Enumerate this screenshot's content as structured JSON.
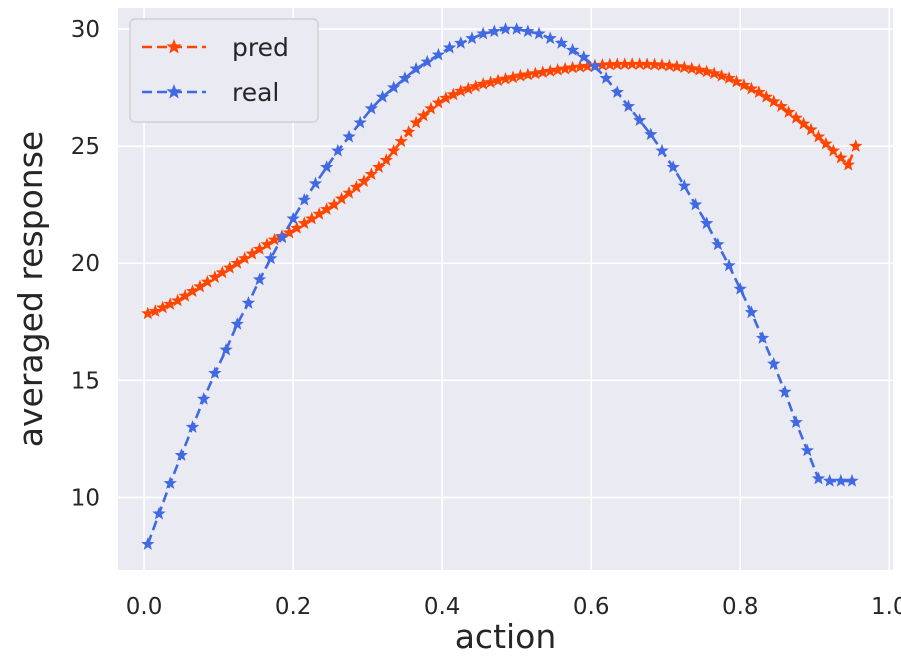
{
  "chart_data": {
    "type": "line",
    "title": "",
    "xlabel": "action",
    "ylabel": "averaged response",
    "xlim": [
      -0.035,
      1.005
    ],
    "ylim": [
      6.9,
      30.9
    ],
    "x_ticks": [
      0.0,
      0.2,
      0.4,
      0.6,
      0.8,
      1.0
    ],
    "x_tick_labels": [
      "0.0",
      "0.2",
      "0.4",
      "0.6",
      "0.8",
      "1.0"
    ],
    "y_ticks": [
      10,
      15,
      20,
      25,
      30
    ],
    "y_tick_labels": [
      "10",
      "15",
      "20",
      "25",
      "30"
    ],
    "grid": true,
    "legend_position": "top-left",
    "background_color": "#eaeaf2",
    "marker": "star",
    "line_style": "dashed",
    "series": [
      {
        "name": "pred",
        "color": "#ff4500",
        "x": [
          0.005,
          0.015,
          0.025,
          0.035,
          0.045,
          0.055,
          0.065,
          0.075,
          0.085,
          0.095,
          0.105,
          0.115,
          0.125,
          0.135,
          0.145,
          0.155,
          0.165,
          0.175,
          0.185,
          0.195,
          0.205,
          0.215,
          0.225,
          0.235,
          0.245,
          0.255,
          0.265,
          0.275,
          0.285,
          0.295,
          0.305,
          0.315,
          0.325,
          0.335,
          0.345,
          0.355,
          0.365,
          0.375,
          0.385,
          0.395,
          0.405,
          0.415,
          0.425,
          0.435,
          0.445,
          0.455,
          0.465,
          0.475,
          0.485,
          0.495,
          0.505,
          0.515,
          0.525,
          0.535,
          0.545,
          0.555,
          0.565,
          0.575,
          0.585,
          0.595,
          0.605,
          0.615,
          0.625,
          0.635,
          0.645,
          0.655,
          0.665,
          0.675,
          0.685,
          0.695,
          0.705,
          0.715,
          0.725,
          0.735,
          0.745,
          0.755,
          0.765,
          0.775,
          0.785,
          0.795,
          0.805,
          0.815,
          0.825,
          0.835,
          0.845,
          0.855,
          0.865,
          0.875,
          0.885,
          0.895,
          0.905,
          0.915,
          0.925,
          0.935,
          0.945,
          0.955
        ],
        "y": [
          17.85,
          17.95,
          18.1,
          18.25,
          18.4,
          18.6,
          18.8,
          19.0,
          19.2,
          19.4,
          19.6,
          19.8,
          20.0,
          20.2,
          20.4,
          20.6,
          20.8,
          21.0,
          21.15,
          21.3,
          21.5,
          21.7,
          21.9,
          22.1,
          22.3,
          22.5,
          22.75,
          23.0,
          23.25,
          23.5,
          23.8,
          24.1,
          24.4,
          24.8,
          25.2,
          25.6,
          26.0,
          26.3,
          26.6,
          26.85,
          27.05,
          27.2,
          27.35,
          27.45,
          27.55,
          27.65,
          27.72,
          27.8,
          27.87,
          27.93,
          28.0,
          28.05,
          28.1,
          28.15,
          28.2,
          28.25,
          28.3,
          28.35,
          28.38,
          28.41,
          28.44,
          28.46,
          28.48,
          28.49,
          28.5,
          28.5,
          28.5,
          28.49,
          28.48,
          28.46,
          28.43,
          28.4,
          28.36,
          28.31,
          28.25,
          28.18,
          28.1,
          28.0,
          27.9,
          27.75,
          27.6,
          27.45,
          27.3,
          27.1,
          26.9,
          26.7,
          26.45,
          26.2,
          25.95,
          25.7,
          25.4,
          25.1,
          24.8,
          24.5,
          24.2,
          25.0
        ]
      },
      {
        "name": "real",
        "color": "#4169e1",
        "x": [
          0.005,
          0.02,
          0.035,
          0.05,
          0.065,
          0.08,
          0.095,
          0.11,
          0.125,
          0.14,
          0.155,
          0.17,
          0.185,
          0.2,
          0.215,
          0.23,
          0.245,
          0.26,
          0.275,
          0.29,
          0.305,
          0.32,
          0.335,
          0.35,
          0.365,
          0.38,
          0.395,
          0.41,
          0.425,
          0.44,
          0.455,
          0.47,
          0.485,
          0.5,
          0.515,
          0.53,
          0.545,
          0.56,
          0.575,
          0.59,
          0.605,
          0.62,
          0.635,
          0.65,
          0.665,
          0.68,
          0.695,
          0.71,
          0.725,
          0.74,
          0.755,
          0.77,
          0.785,
          0.8,
          0.815,
          0.83,
          0.845,
          0.86,
          0.875,
          0.89,
          0.905,
          0.92,
          0.935,
          0.95
        ],
        "y": [
          8.0,
          9.3,
          10.6,
          11.8,
          13.0,
          14.2,
          15.3,
          16.3,
          17.4,
          18.3,
          19.3,
          20.2,
          21.1,
          21.9,
          22.7,
          23.4,
          24.1,
          24.8,
          25.4,
          26.0,
          26.6,
          27.1,
          27.5,
          27.9,
          28.3,
          28.6,
          28.9,
          29.2,
          29.4,
          29.6,
          29.8,
          29.9,
          30.0,
          30.0,
          29.9,
          29.8,
          29.6,
          29.4,
          29.1,
          28.8,
          28.4,
          27.9,
          27.3,
          26.7,
          26.1,
          25.5,
          24.8,
          24.1,
          23.3,
          22.5,
          21.7,
          20.8,
          19.9,
          18.9,
          17.9,
          16.8,
          15.7,
          14.5,
          13.2,
          12.0,
          10.8,
          10.7,
          10.7,
          10.7
        ]
      }
    ]
  }
}
